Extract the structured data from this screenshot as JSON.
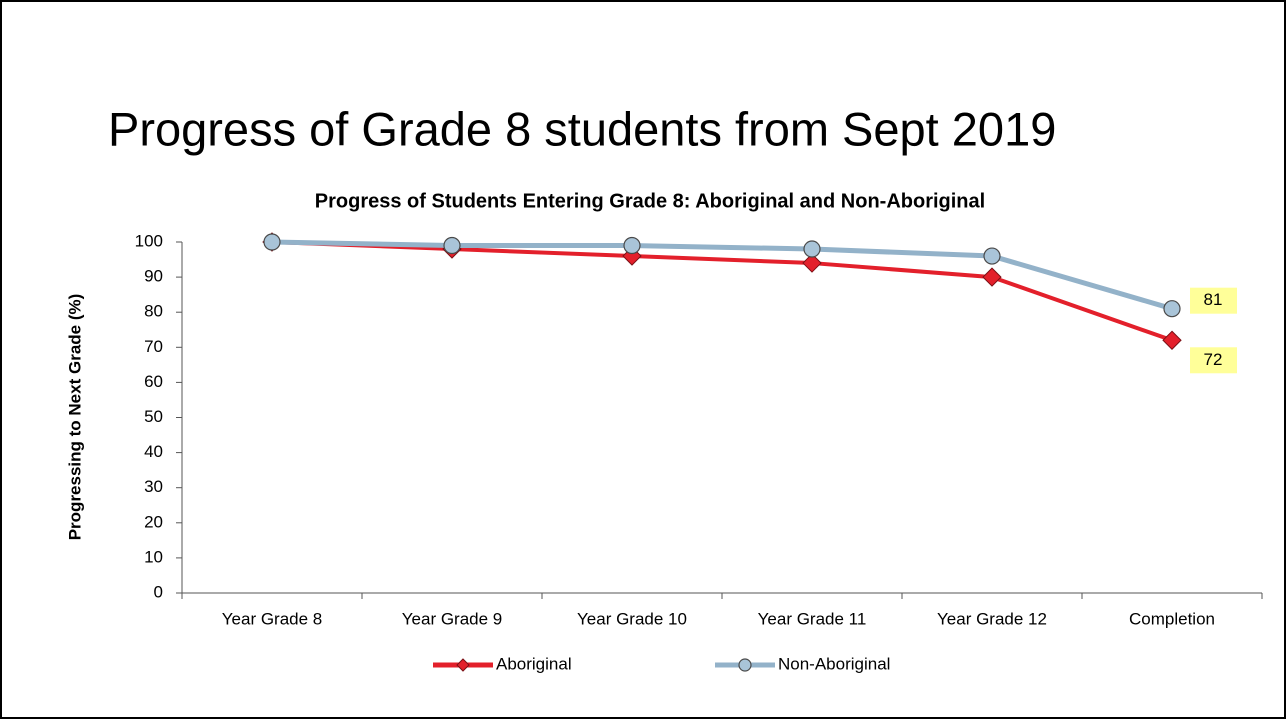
{
  "slide_title": "Progress of Grade 8 students from Sept 2019",
  "chart_data": {
    "type": "line",
    "title": "Progress of Students Entering Grade 8: Aboriginal and Non-Aboriginal",
    "y_label": "Progressing to Next Grade (%)",
    "categories": [
      "Year Grade 8",
      "Year Grade 9",
      "Year Grade 10",
      "Year Grade 11",
      "Year Grade 12",
      "Completion"
    ],
    "series": [
      {
        "name": "Aboriginal",
        "color": "#e3202b",
        "marker": "diamond",
        "values": [
          100,
          98,
          96,
          94,
          90,
          72
        ]
      },
      {
        "name": "Non-Aboriginal",
        "color": "#93b2c9",
        "marker": "circle",
        "values": [
          100,
          99,
          99,
          98,
          96,
          81
        ]
      }
    ],
    "ylim": [
      0,
      100
    ],
    "yticks": [
      0,
      10,
      20,
      30,
      40,
      50,
      60,
      70,
      80,
      90,
      100
    ],
    "legend": "bottom"
  }
}
